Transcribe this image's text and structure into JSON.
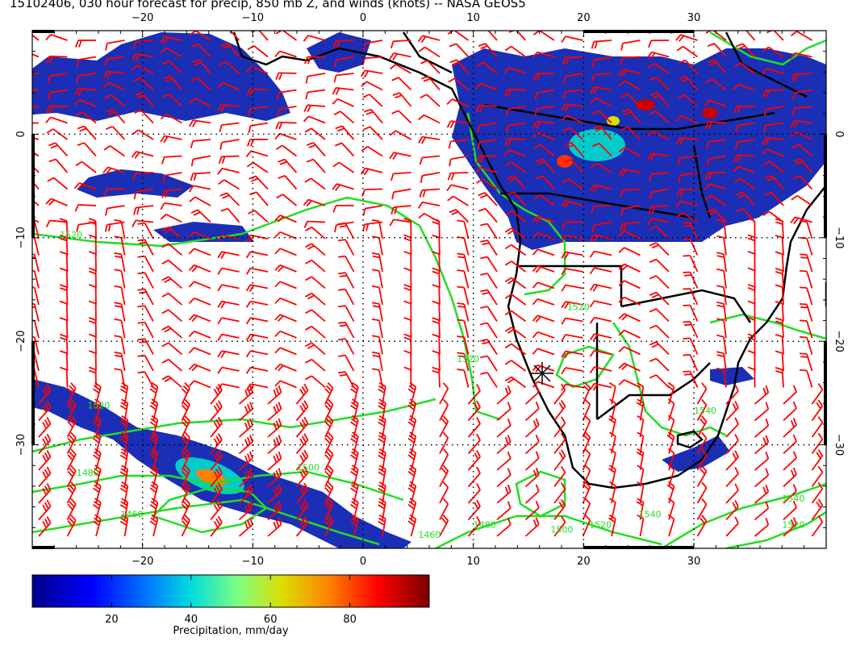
{
  "title": "15102406, 030 hour forecast for precip, 850 mb Z, and winds (knots) -- NASA GEOS5",
  "map": {
    "lon_range": [
      -30,
      42
    ],
    "lat_range": [
      -40,
      10
    ],
    "lon_ticks": [
      -20,
      -10,
      0,
      10,
      20,
      30
    ],
    "lat_ticks": [
      0,
      -10,
      -20,
      -30
    ],
    "lon_tick_labels": [
      "−20",
      "−10",
      "0",
      "10",
      "20",
      "30"
    ],
    "lat_tick_labels": [
      "0",
      "−10",
      "−20",
      "−30"
    ],
    "grid_style": "dotted"
  },
  "contours": {
    "color": "#22dd22",
    "labels": [
      {
        "text": "1520",
        "lon": -27.5,
        "lat": -10
      },
      {
        "text": "1520",
        "lon": 8.5,
        "lat": -22
      },
      {
        "text": "1520",
        "lon": 18.5,
        "lat": -17
      },
      {
        "text": "1520",
        "lon": -25,
        "lat": -26.5
      },
      {
        "text": "1500",
        "lon": -6,
        "lat": -32.5
      },
      {
        "text": "1480",
        "lon": -26,
        "lat": -33
      },
      {
        "text": "1460",
        "lon": -22,
        "lat": -37
      },
      {
        "text": "1460",
        "lon": 5,
        "lat": -39
      },
      {
        "text": "1480",
        "lon": 10,
        "lat": -38
      },
      {
        "text": "1500",
        "lon": 17,
        "lat": -38.5
      },
      {
        "text": "1520",
        "lon": 20.5,
        "lat": -38
      },
      {
        "text": "1540",
        "lon": 25,
        "lat": -37
      },
      {
        "text": "1540",
        "lon": 38,
        "lat": -35.5
      },
      {
        "text": "1520",
        "lon": 38,
        "lat": -38
      },
      {
        "text": "1540",
        "lon": 30,
        "lat": -27
      }
    ]
  },
  "winds": {
    "color": "#ff0000",
    "units": "knots"
  },
  "colorbar": {
    "title": "Precipitation, mm/day",
    "range": [
      0,
      100
    ],
    "ticks": [
      20,
      40,
      60,
      80
    ],
    "tick_labels": [
      "20",
      "40",
      "60",
      "80"
    ],
    "colors": [
      "#00008b",
      "#0000ff",
      "#0080ff",
      "#00dddd",
      "#80ff80",
      "#dddd00",
      "#ff8000",
      "#ff0000",
      "#7a0000"
    ]
  }
}
